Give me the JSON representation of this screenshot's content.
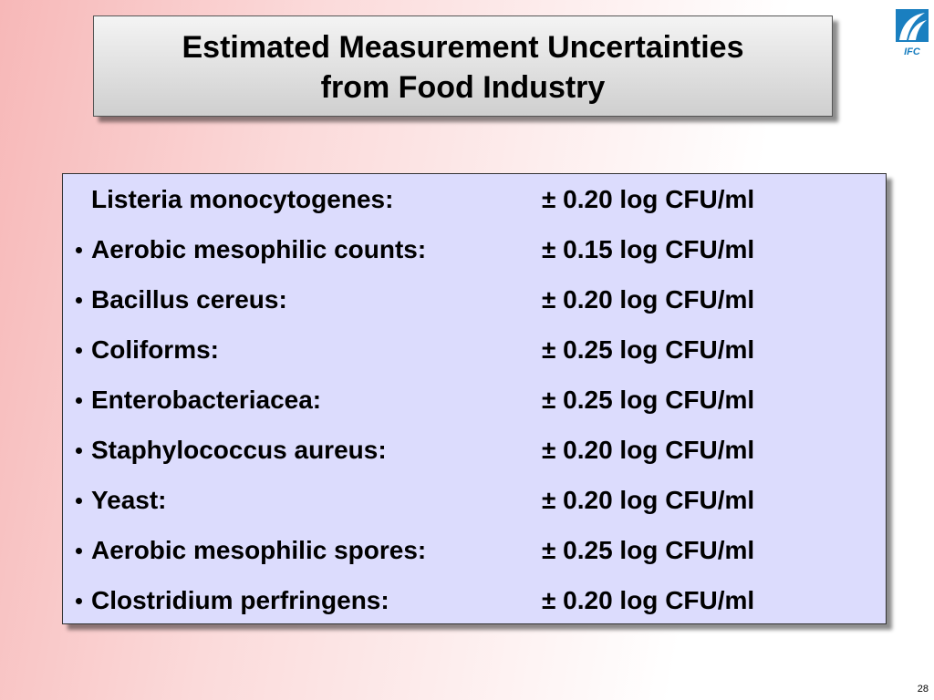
{
  "header": {
    "title_lines": [
      "Estimated Measurement Uncertainties",
      "from Food Industry"
    ]
  },
  "items": [
    {
      "name": "Listeria monocytogenes:",
      "value": "± 0.20 log CFU/ml",
      "bullet": false
    },
    {
      "name": "Aerobic mesophilic counts:",
      "value": "± 0.15 log CFU/ml",
      "bullet": true
    },
    {
      "name": "Bacillus cereus:",
      "value": "± 0.20 log CFU/ml",
      "bullet": true
    },
    {
      "name": "Coliforms:",
      "value": "± 0.25 log CFU/ml",
      "bullet": true
    },
    {
      "name": "Enterobacteriacea:",
      "value": "± 0.25 log CFU/ml",
      "bullet": true
    },
    {
      "name": "Staphylococcus aureus:",
      "value": "± 0.20 log CFU/ml",
      "bullet": true
    },
    {
      "name": "Yeast:",
      "value": "± 0.20 log CFU/ml",
      "bullet": true
    },
    {
      "name": "Aerobic mesophilic spores:",
      "value": "± 0.25 log CFU/ml",
      "bullet": true
    },
    {
      "name": "Clostridium perfringens:",
      "value": "± 0.20 log CFU/ml",
      "bullet": true
    }
  ],
  "logo": {
    "text": "IFC"
  },
  "footer": {
    "page_number": "28"
  }
}
